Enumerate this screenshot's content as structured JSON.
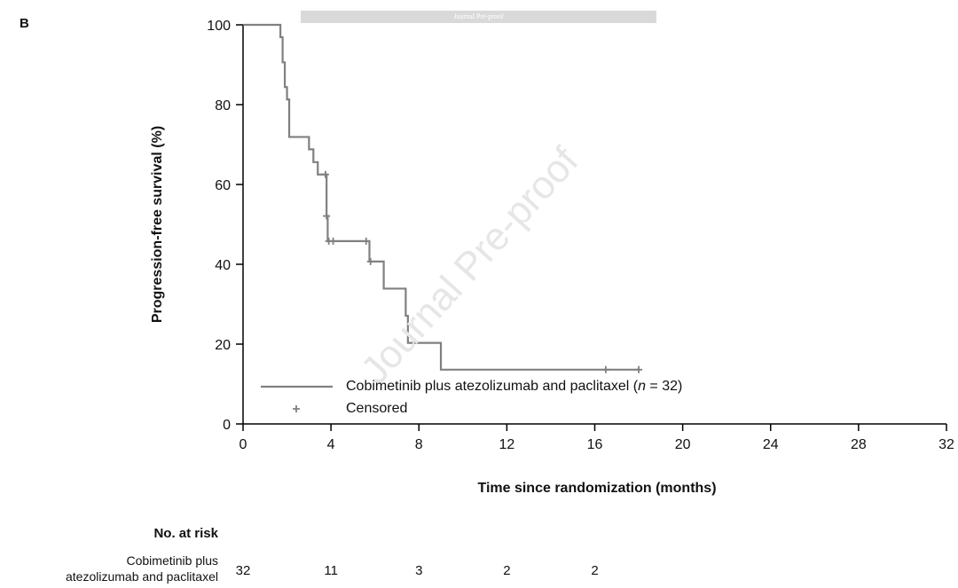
{
  "panel_label": "B",
  "banner_text": "Journal Pre-proof",
  "watermark_text": "Journal Pre-proof",
  "colors": {
    "curve": "#808080",
    "axis": "#000000"
  },
  "chart_data": {
    "type": "line",
    "step": true,
    "xlabel": "Time since randomization (months)",
    "ylabel": "Progression-free survival (%)",
    "xlim": [
      0,
      32
    ],
    "ylim": [
      0,
      100
    ],
    "xticks": [
      0,
      4,
      8,
      12,
      16,
      20,
      24,
      28,
      32
    ],
    "yticks": [
      0,
      20,
      40,
      60,
      80,
      100
    ],
    "grid": false,
    "legend_position": "bottom-left",
    "series": [
      {
        "name_prefix": "Cobimetinib plus atezolizumab and paclitaxel (",
        "name_italic": "n",
        "name_suffix": " = 32)",
        "x": [
          0,
          1.7,
          1.8,
          1.9,
          2.0,
          2.1,
          3.0,
          3.2,
          3.4,
          3.6,
          3.8,
          3.85,
          5.6,
          5.75,
          6.4,
          7.4,
          7.5,
          7.6,
          9.0,
          18.0
        ],
        "y": [
          100,
          96.9,
          90.6,
          84.4,
          81.3,
          71.9,
          68.8,
          65.6,
          62.5,
          62.5,
          52.1,
          45.8,
          45.8,
          40.7,
          33.9,
          27.1,
          20.3,
          20.3,
          13.6,
          13.6
        ]
      }
    ],
    "censored": {
      "label": "Censored",
      "points": [
        [
          3.75,
          62.5
        ],
        [
          3.8,
          52.1
        ],
        [
          3.9,
          45.8
        ],
        [
          4.1,
          45.8
        ],
        [
          5.6,
          45.8
        ],
        [
          5.8,
          40.7
        ],
        [
          16.5,
          13.6
        ],
        [
          18.0,
          13.6
        ]
      ]
    },
    "at_risk": {
      "heading": "No. at risk",
      "group_label_line1": "Cobimetinib plus",
      "group_label_line2": "atezolizumab and paclitaxel",
      "times": [
        0,
        4,
        8,
        12,
        16
      ],
      "counts": [
        "32",
        "11",
        "3",
        "2",
        "2"
      ]
    }
  }
}
